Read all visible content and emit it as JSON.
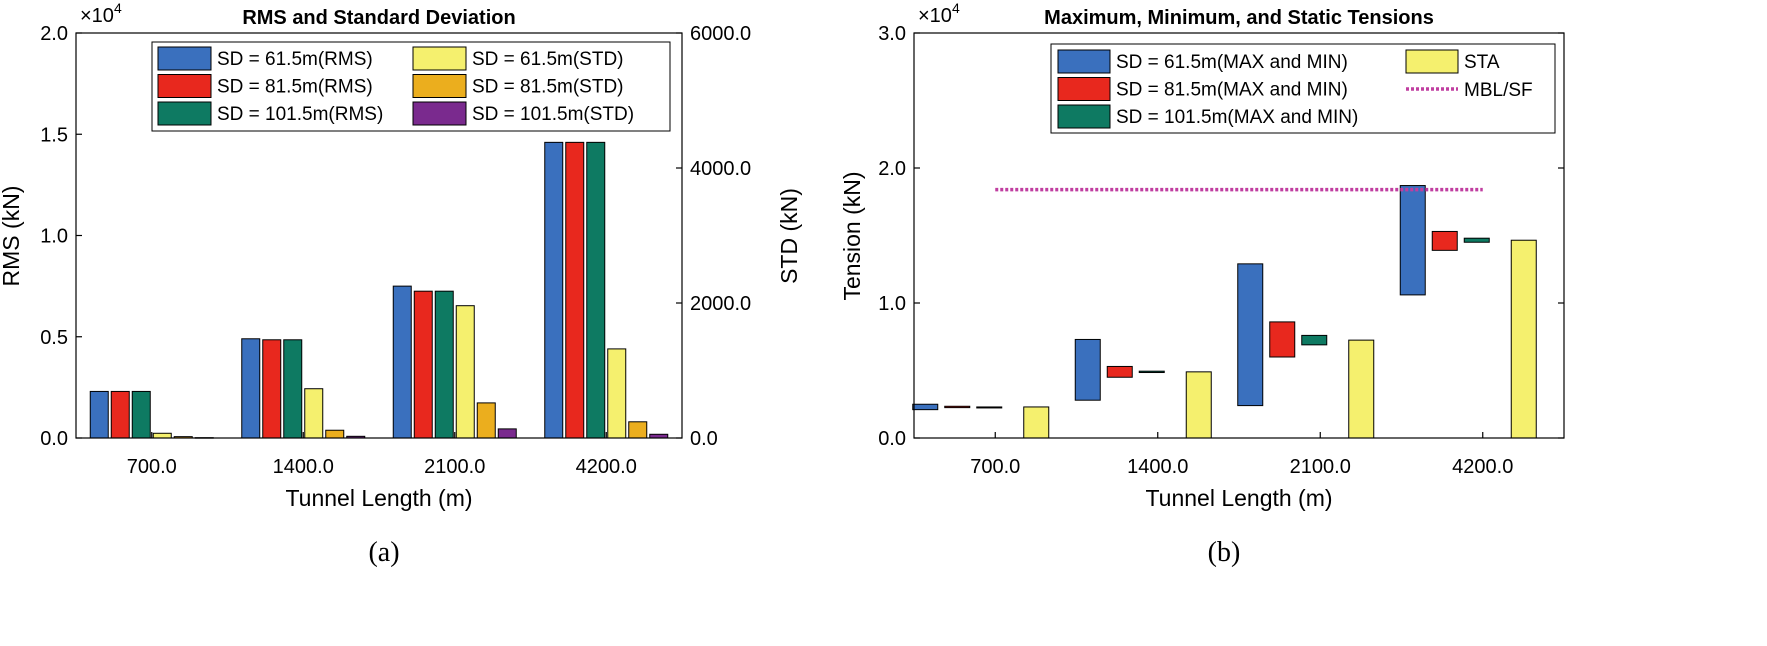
{
  "colors": {
    "blue": "#3A70BE",
    "red": "#E8281E",
    "green": "#0E7A62",
    "yellow": "#F5F06E",
    "orange": "#EBAE1E",
    "purple": "#7A2A8E",
    "magenta": "#C03EA0"
  },
  "chart_data": [
    {
      "type": "bar",
      "panel_label": "(a)",
      "title": "RMS and Standard Deviation",
      "xlabel": "Tunnel Length (m)",
      "ylabel": "RMS (kN)",
      "y2label": "STD (kN)",
      "y_multiplier_base": "×10",
      "y_multiplier_exp": "4",
      "categories": [
        "700.0",
        "1400.0",
        "2100.0",
        "4200.0"
      ],
      "ylim": [
        0,
        2.0
      ],
      "y_ticks": [
        "0.0",
        "0.5",
        "1.0",
        "1.5",
        "2.0"
      ],
      "y2lim": [
        0,
        6000
      ],
      "y2_ticks": [
        "0.0",
        "2000.0",
        "4000.0",
        "6000.0"
      ],
      "grid": false,
      "legend_position": "top-right",
      "series": [
        {
          "name": "SD = 61.5m(RMS)",
          "axis": "left",
          "color": "blue",
          "values": [
            0.23,
            0.49,
            0.75,
            1.46
          ]
        },
        {
          "name": "SD = 81.5m(RMS)",
          "axis": "left",
          "color": "red",
          "values": [
            0.23,
            0.485,
            0.725,
            1.46
          ]
        },
        {
          "name": "SD = 101.5m(RMS)",
          "axis": "left",
          "color": "green",
          "values": [
            0.23,
            0.485,
            0.725,
            1.46
          ]
        },
        {
          "name": "SD = 61.5m(STD)",
          "axis": "right",
          "color": "yellow",
          "values": [
            70,
            730,
            1960,
            1320
          ]
        },
        {
          "name": "SD = 81.5m(STD)",
          "axis": "right",
          "color": "orange",
          "values": [
            20,
            115,
            520,
            240
          ]
        },
        {
          "name": "SD = 101.5m(STD)",
          "axis": "right",
          "color": "purple",
          "values": [
            5,
            25,
            135,
            55
          ]
        }
      ]
    },
    {
      "type": "bar",
      "panel_label": "(b)",
      "title": "Maximum, Minimum, and Static Tensions",
      "xlabel": "Tunnel Length (m)",
      "ylabel": "Tension (kN)",
      "y_multiplier_base": "×10",
      "y_multiplier_exp": "4",
      "categories": [
        "700.0",
        "1400.0",
        "2100.0",
        "4200.0"
      ],
      "ylim": [
        0,
        3.0
      ],
      "y_ticks": [
        "0.0",
        "1.0",
        "2.0",
        "3.0"
      ],
      "grid": false,
      "legend_position": "top-right",
      "range_series": [
        {
          "name": "SD = 61.5m(MAX and MIN)",
          "color": "blue",
          "min": [
            0.21,
            0.28,
            0.24,
            1.06
          ],
          "max": [
            0.25,
            0.73,
            1.29,
            1.87
          ]
        },
        {
          "name": "SD = 81.5m(MAX and MIN)",
          "color": "red",
          "min": [
            0.225,
            0.45,
            0.6,
            1.39
          ],
          "max": [
            0.235,
            0.53,
            0.86,
            1.53
          ]
        },
        {
          "name": "SD = 101.5m(MAX and MIN)",
          "color": "green",
          "min": [
            0.227,
            0.485,
            0.69,
            1.45
          ],
          "max": [
            0.23,
            0.495,
            0.76,
            1.48
          ]
        }
      ],
      "series": [
        {
          "name": "STA",
          "color": "yellow",
          "values": [
            0.23,
            0.49,
            0.725,
            1.465
          ]
        }
      ],
      "reference_line": {
        "name": "MBL/SF",
        "value": 1.84,
        "color": "magenta",
        "style": "dotted"
      }
    }
  ]
}
